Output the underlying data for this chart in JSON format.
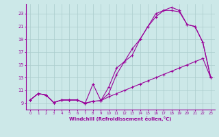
{
  "xlabel": "Windchill (Refroidissement éolien,°C)",
  "background_color": "#cce8e8",
  "grid_color": "#aacccc",
  "line_color": "#990099",
  "x_ticks": [
    0,
    1,
    2,
    3,
    4,
    5,
    6,
    7,
    8,
    9,
    10,
    11,
    12,
    13,
    14,
    15,
    16,
    17,
    18,
    19,
    20,
    21,
    22,
    23
  ],
  "y_ticks": [
    9,
    11,
    13,
    15,
    17,
    19,
    21,
    23
  ],
  "xlim": [
    -0.5,
    23.5
  ],
  "ylim": [
    8.0,
    24.5
  ],
  "line1_x": [
    0,
    1,
    2,
    3,
    4,
    5,
    6,
    7,
    8,
    9,
    10,
    11,
    12,
    13,
    14,
    15,
    16,
    17,
    18,
    19,
    20,
    21,
    22,
    23
  ],
  "line1_y": [
    9.5,
    10.5,
    10.3,
    9.1,
    9.5,
    9.5,
    9.5,
    9.0,
    9.3,
    9.4,
    10.5,
    13.5,
    15.5,
    17.5,
    19.0,
    21.0,
    23.0,
    23.5,
    23.5,
    23.3,
    21.3,
    21.0,
    18.5,
    13.0
  ],
  "line2_x": [
    0,
    1,
    2,
    3,
    4,
    5,
    6,
    7,
    8,
    9,
    10,
    11,
    12,
    13,
    14,
    15,
    16,
    17,
    18,
    19,
    20,
    21,
    22,
    23
  ],
  "line2_y": [
    9.5,
    10.5,
    10.3,
    9.1,
    9.5,
    9.5,
    9.5,
    9.0,
    9.3,
    9.4,
    11.5,
    14.5,
    15.5,
    16.5,
    19.0,
    21.0,
    22.5,
    23.5,
    24.0,
    23.5,
    21.3,
    21.0,
    18.5,
    13.0
  ],
  "line3_x": [
    0,
    1,
    2,
    3,
    4,
    5,
    6,
    7,
    8,
    9,
    10,
    11,
    12,
    13,
    14,
    15,
    16,
    17,
    18,
    19,
    20,
    21,
    22,
    23
  ],
  "line3_y": [
    9.5,
    10.5,
    10.3,
    9.1,
    9.5,
    9.5,
    9.5,
    9.0,
    12.0,
    9.4,
    10.0,
    10.5,
    11.0,
    11.5,
    12.0,
    12.5,
    13.0,
    13.5,
    14.0,
    14.5,
    15.0,
    15.5,
    16.0,
    13.0
  ]
}
